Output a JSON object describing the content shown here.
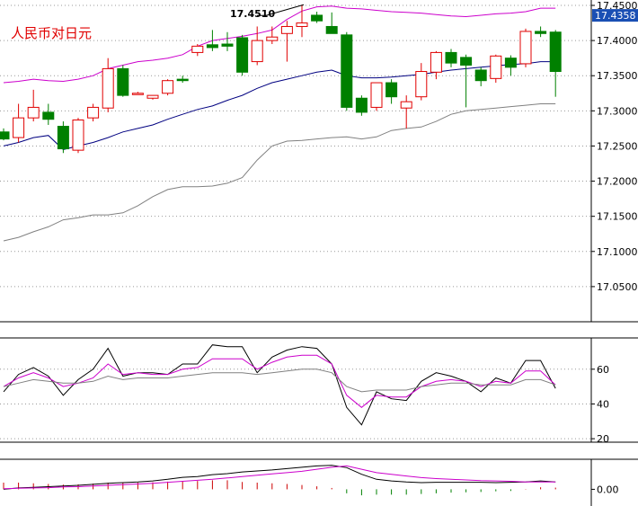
{
  "chart_data": [
    {
      "type": "candlestick",
      "title": "人民币对日元",
      "current_price": "17.4358",
      "colors": {
        "up": "#e00000",
        "down": "#008000",
        "ma": "#000080",
        "band_upper": "#cc00cc",
        "band_lower": "#808080",
        "price_tag": "#1a4fb4"
      },
      "ylim": [
        17.0,
        17.45
      ],
      "y_ticks": [
        "17.4500",
        "17.4000",
        "17.3500",
        "17.3000",
        "17.2500",
        "17.2000",
        "17.1500",
        "17.1000",
        "17.0500"
      ],
      "y_tick_values": [
        17.45,
        17.4,
        17.35,
        17.3,
        17.25,
        17.2,
        17.15,
        17.1,
        17.05
      ],
      "annotation": {
        "text": "17.4510",
        "value": 17.451,
        "index": 20
      },
      "candles": [
        {
          "o": 17.27,
          "h": 17.275,
          "l": 17.258,
          "c": 17.26
        },
        {
          "o": 17.262,
          "h": 17.31,
          "l": 17.255,
          "c": 17.29
        },
        {
          "o": 17.29,
          "h": 17.33,
          "l": 17.285,
          "c": 17.305
        },
        {
          "o": 17.298,
          "h": 17.31,
          "l": 17.28,
          "c": 17.288
        },
        {
          "o": 17.278,
          "h": 17.285,
          "l": 17.24,
          "c": 17.246
        },
        {
          "o": 17.244,
          "h": 17.29,
          "l": 17.24,
          "c": 17.287
        },
        {
          "o": 17.29,
          "h": 17.31,
          "l": 17.285,
          "c": 17.305
        },
        {
          "o": 17.304,
          "h": 17.375,
          "l": 17.298,
          "c": 17.36
        },
        {
          "o": 17.36,
          "h": 17.365,
          "l": 17.32,
          "c": 17.322
        },
        {
          "o": 17.325,
          "h": 17.327,
          "l": 17.323,
          "c": 17.325
        },
        {
          "o": 17.318,
          "h": 17.322,
          "l": 17.316,
          "c": 17.322
        },
        {
          "o": 17.325,
          "h": 17.345,
          "l": 17.322,
          "c": 17.343
        },
        {
          "o": 17.345,
          "h": 17.35,
          "l": 17.34,
          "c": 17.343
        },
        {
          "o": 17.383,
          "h": 17.395,
          "l": 17.378,
          "c": 17.392
        },
        {
          "o": 17.394,
          "h": 17.415,
          "l": 17.385,
          "c": 17.39
        },
        {
          "o": 17.395,
          "h": 17.412,
          "l": 17.385,
          "c": 17.392
        },
        {
          "o": 17.404,
          "h": 17.408,
          "l": 17.35,
          "c": 17.355
        },
        {
          "o": 17.37,
          "h": 17.42,
          "l": 17.365,
          "c": 17.4
        },
        {
          "o": 17.4,
          "h": 17.42,
          "l": 17.395,
          "c": 17.405
        },
        {
          "o": 17.41,
          "h": 17.428,
          "l": 17.37,
          "c": 17.42
        },
        {
          "o": 17.42,
          "h": 17.451,
          "l": 17.405,
          "c": 17.425
        },
        {
          "o": 17.436,
          "h": 17.441,
          "l": 17.425,
          "c": 17.428
        },
        {
          "o": 17.42,
          "h": 17.44,
          "l": 17.41,
          "c": 17.41
        },
        {
          "o": 17.408,
          "h": 17.412,
          "l": 17.3,
          "c": 17.305
        },
        {
          "o": 17.318,
          "h": 17.322,
          "l": 17.293,
          "c": 17.298
        },
        {
          "o": 17.305,
          "h": 17.34,
          "l": 17.3,
          "c": 17.34
        },
        {
          "o": 17.34,
          "h": 17.345,
          "l": 17.31,
          "c": 17.32
        },
        {
          "o": 17.304,
          "h": 17.322,
          "l": 17.275,
          "c": 17.313
        },
        {
          "o": 17.32,
          "h": 17.368,
          "l": 17.315,
          "c": 17.356
        },
        {
          "o": 17.355,
          "h": 17.385,
          "l": 17.345,
          "c": 17.383
        },
        {
          "o": 17.383,
          "h": 17.388,
          "l": 17.362,
          "c": 17.368
        },
        {
          "o": 17.376,
          "h": 17.38,
          "l": 17.305,
          "c": 17.365
        },
        {
          "o": 17.358,
          "h": 17.362,
          "l": 17.335,
          "c": 17.343
        },
        {
          "o": 17.346,
          "h": 17.38,
          "l": 17.34,
          "c": 17.378
        },
        {
          "o": 17.375,
          "h": 17.379,
          "l": 17.35,
          "c": 17.362
        },
        {
          "o": 17.367,
          "h": 17.417,
          "l": 17.362,
          "c": 17.413
        },
        {
          "o": 17.413,
          "h": 17.42,
          "l": 17.405,
          "c": 17.41
        },
        {
          "o": 17.412,
          "h": 17.415,
          "l": 17.32,
          "c": 17.356
        }
      ],
      "ma_line": [
        17.25,
        17.255,
        17.262,
        17.265,
        17.245,
        17.25,
        17.255,
        17.262,
        17.27,
        17.275,
        17.28,
        17.288,
        17.295,
        17.302,
        17.307,
        17.315,
        17.322,
        17.332,
        17.34,
        17.345,
        17.35,
        17.355,
        17.358,
        17.35,
        17.347,
        17.347,
        17.348,
        17.35,
        17.352,
        17.355,
        17.358,
        17.36,
        17.362,
        17.364,
        17.366,
        17.367,
        17.37,
        17.37
      ],
      "upper_band": [
        17.34,
        17.342,
        17.345,
        17.343,
        17.342,
        17.345,
        17.35,
        17.36,
        17.365,
        17.37,
        17.372,
        17.375,
        17.38,
        17.392,
        17.4,
        17.403,
        17.406,
        17.41,
        17.415,
        17.43,
        17.442,
        17.448,
        17.449,
        17.446,
        17.445,
        17.443,
        17.441,
        17.44,
        17.439,
        17.437,
        17.435,
        17.434,
        17.436,
        17.438,
        17.439,
        17.441,
        17.446,
        17.446
      ],
      "lower_band": [
        17.115,
        17.12,
        17.128,
        17.135,
        17.145,
        17.148,
        17.152,
        17.152,
        17.155,
        17.165,
        17.178,
        17.188,
        17.192,
        17.192,
        17.193,
        17.197,
        17.205,
        17.23,
        17.25,
        17.257,
        17.258,
        17.26,
        17.262,
        17.263,
        17.26,
        17.263,
        17.272,
        17.275,
        17.277,
        17.285,
        17.295,
        17.3,
        17.302,
        17.304,
        17.306,
        17.308,
        17.31,
        17.31
      ]
    },
    {
      "type": "line",
      "ylim": [
        18,
        78
      ],
      "y_ticks": [
        "60",
        "40",
        "20"
      ],
      "y_tick_values": [
        60,
        40,
        20
      ],
      "colors": [
        "#000000",
        "#cc00cc",
        "#808080"
      ],
      "series": [
        {
          "values": [
            47,
            57,
            61,
            56,
            45,
            54,
            60,
            72,
            56,
            58,
            58,
            57,
            63,
            63,
            74,
            73,
            73,
            58,
            67,
            71,
            73,
            72,
            63,
            38,
            28,
            47,
            43,
            42,
            53,
            58,
            56,
            53,
            47,
            55,
            52,
            65,
            65,
            49
          ]
        },
        {
          "values": [
            50,
            55,
            58,
            55,
            50,
            52,
            55,
            63,
            57,
            58,
            57,
            57,
            60,
            61,
            66,
            66,
            66,
            60,
            64,
            67,
            68,
            68,
            63,
            45,
            38,
            45,
            44,
            44,
            50,
            53,
            54,
            53,
            50,
            53,
            52,
            59,
            59,
            51
          ]
        },
        {
          "values": [
            50,
            52,
            54,
            53,
            52,
            52,
            53,
            56,
            54,
            55,
            55,
            55,
            56,
            57,
            58,
            58,
            58,
            57,
            58,
            59,
            60,
            60,
            58,
            50,
            47,
            48,
            48,
            48,
            50,
            51,
            52,
            52,
            51,
            51,
            51,
            54,
            54,
            51
          ]
        }
      ]
    },
    {
      "type": "bar",
      "ylim": [
        -0.05,
        0.09
      ],
      "y_ticks": [
        "0.00"
      ],
      "y_tick_values": [
        0
      ],
      "colors": {
        "up": "#cc0000",
        "down": "#008000",
        "dif": "#000000",
        "dea": "#cc00cc"
      },
      "macd_hist": [
        0.02,
        0.02,
        0.018,
        0.016,
        0.014,
        0.015,
        0.017,
        0.02,
        0.02,
        0.02,
        0.021,
        0.023,
        0.025,
        0.025,
        0.027,
        0.027,
        0.022,
        0.02,
        0.018,
        0.016,
        0.013,
        0.009,
        0.004,
        -0.012,
        -0.018,
        -0.016,
        -0.016,
        -0.016,
        -0.014,
        -0.012,
        -0.01,
        -0.009,
        -0.008,
        -0.006,
        -0.005,
        0.001,
        0.006,
        0.005
      ],
      "dif": [
        0.0,
        0.004,
        0.006,
        0.008,
        0.01,
        0.012,
        0.015,
        0.018,
        0.02,
        0.022,
        0.025,
        0.03,
        0.036,
        0.038,
        0.044,
        0.047,
        0.052,
        0.055,
        0.058,
        0.062,
        0.066,
        0.07,
        0.072,
        0.065,
        0.045,
        0.03,
        0.025,
        0.022,
        0.02,
        0.021,
        0.021,
        0.021,
        0.021,
        0.02,
        0.021,
        0.022,
        0.025,
        0.022
      ],
      "dea": [
        0.002,
        0.003,
        0.004,
        0.005,
        0.007,
        0.008,
        0.01,
        0.012,
        0.014,
        0.016,
        0.018,
        0.021,
        0.024,
        0.027,
        0.03,
        0.034,
        0.038,
        0.042,
        0.046,
        0.05,
        0.054,
        0.06,
        0.066,
        0.07,
        0.06,
        0.05,
        0.045,
        0.04,
        0.035,
        0.032,
        0.03,
        0.028,
        0.026,
        0.025,
        0.024,
        0.022,
        0.022,
        0.022
      ]
    }
  ]
}
